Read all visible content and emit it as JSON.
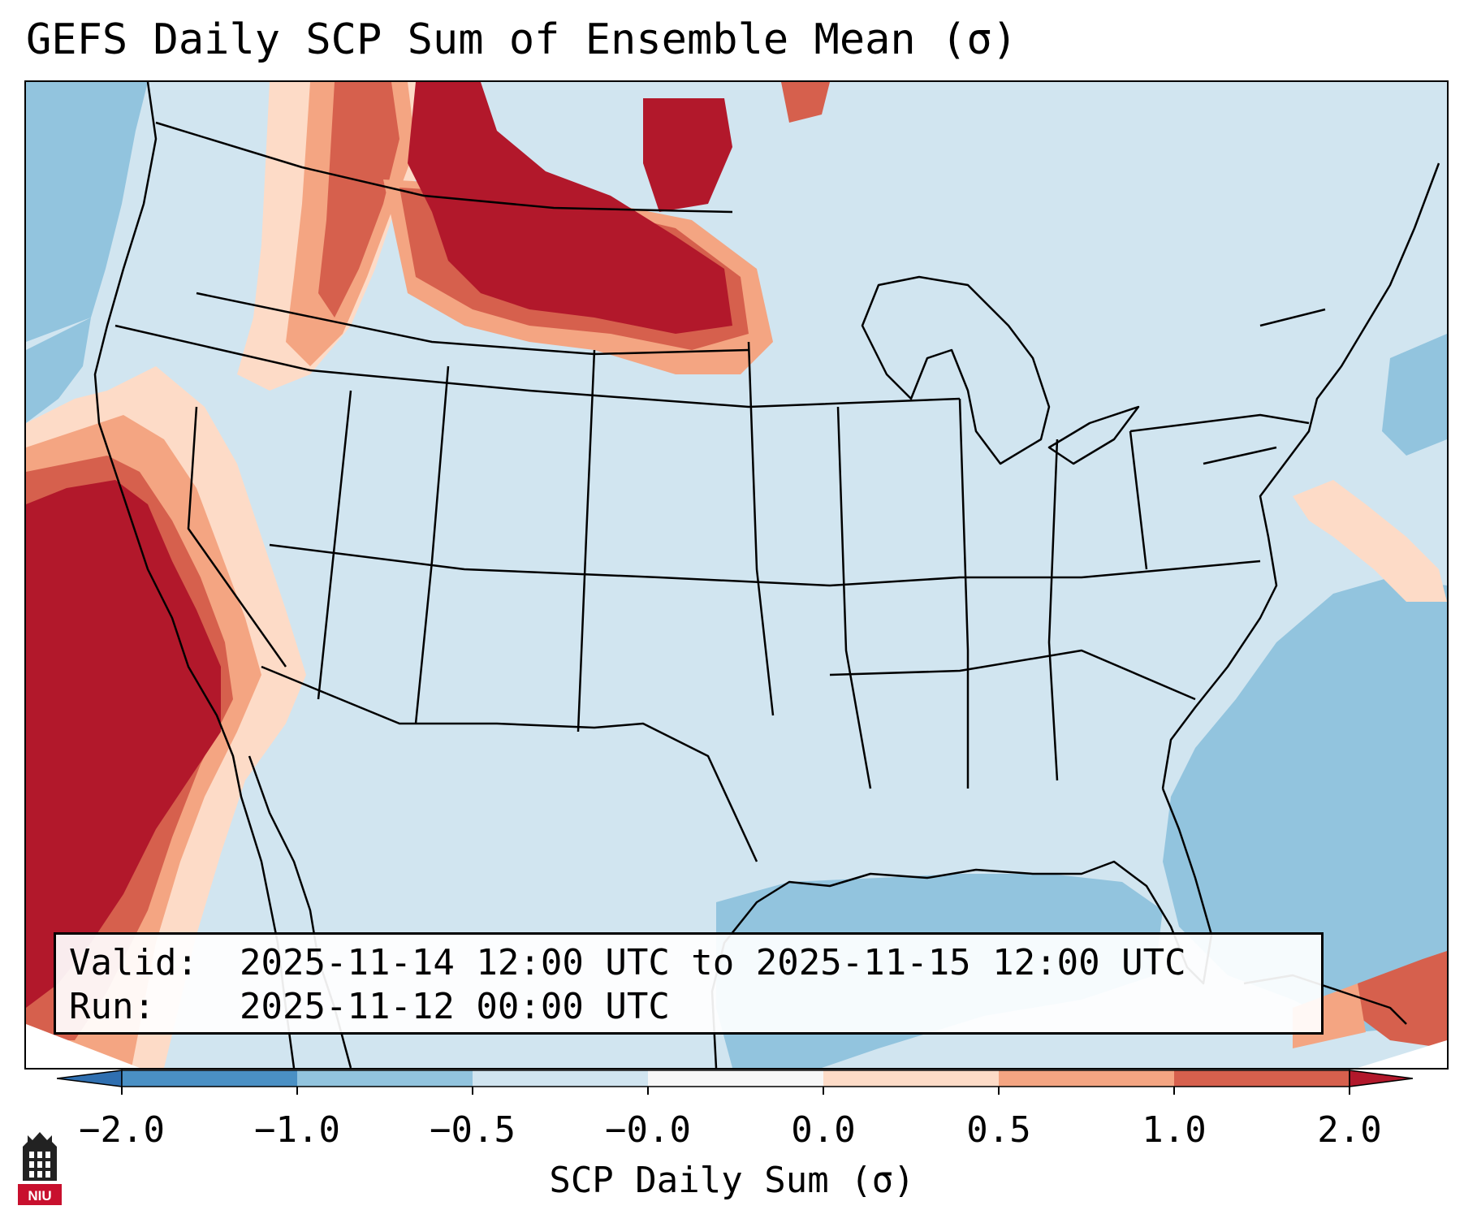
{
  "title": "GEFS Daily SCP Sum of Ensemble Mean (σ)",
  "info": {
    "valid_key": "Valid:",
    "valid_value": "2025-11-14 12:00 UTC to 2025-11-15 12:00 UTC",
    "run_key": "Run:",
    "run_value": "2025-11-12 00:00 UTC"
  },
  "colorbar": {
    "label": "SCP Daily Sum (σ)",
    "ticks": [
      "−2.0",
      "−1.0",
      "−0.5",
      "−0.0",
      "0.0",
      "0.5",
      "1.0",
      "2.0"
    ],
    "colors": [
      "#2f6fb0",
      "#4a90c4",
      "#92c4de",
      "#d1e5f0",
      "#f7f7f7",
      "#fddbc7",
      "#f4a582",
      "#d6604d",
      "#b2182b"
    ]
  },
  "map": {
    "region": "Contiguous United States",
    "background_color": "#d1e5f0",
    "ocean_anomaly_color": "#92c4de",
    "high_color": "#b2182b",
    "mid_color": "#d6604d",
    "low_color": "#f4a582",
    "faint_color": "#fddbc7"
  },
  "logo_text": "NIU"
}
